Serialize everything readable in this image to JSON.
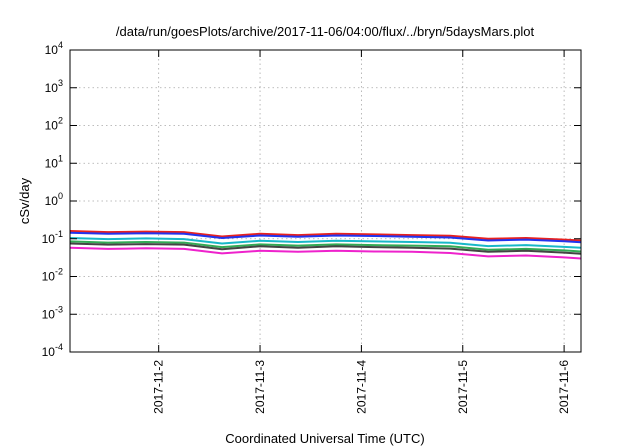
{
  "title": "/data/run/goesPlots/archive/2017-11-06/04:00/flux/../bryn/5daysMars.plot",
  "xlabel": "Coordinated Universal Time (UTC)",
  "ylabel": "cSv/day",
  "chart_data": {
    "type": "line",
    "title": "/data/run/goesPlots/archive/2017-11-06/04:00/flux/../bryn/5daysMars.plot",
    "xlabel": "Coordinated Universal Time (UTC)",
    "ylabel": "cSv/day",
    "yscale": "log",
    "ylim": [
      0.0001,
      10000
    ],
    "xlim": [
      "2017-11-01T03:00",
      "2017-11-06T04:00"
    ],
    "grid": true,
    "x_ticks": [
      "2017-11-2",
      "2017-11-3",
      "2017-11-4",
      "2017-11-5",
      "2017-11-6"
    ],
    "y_ticks": [
      {
        "value": 0.0001,
        "base": "10",
        "exp": "-4"
      },
      {
        "value": 0.001,
        "base": "10",
        "exp": "-3"
      },
      {
        "value": 0.01,
        "base": "10",
        "exp": "-2"
      },
      {
        "value": 0.1,
        "base": "10",
        "exp": "-1"
      },
      {
        "value": 1,
        "base": "10",
        "exp": "0"
      },
      {
        "value": 10,
        "base": "10",
        "exp": "1"
      },
      {
        "value": 100,
        "base": "10",
        "exp": "2"
      },
      {
        "value": 1000,
        "base": "10",
        "exp": "3"
      },
      {
        "value": 10000,
        "base": "10",
        "exp": "4"
      }
    ],
    "x": [
      "2017-11-01T03:00",
      "2017-11-01T12:00",
      "2017-11-01T21:00",
      "2017-11-02T06:00",
      "2017-11-02T15:00",
      "2017-11-03T00:00",
      "2017-11-03T09:00",
      "2017-11-03T18:00",
      "2017-11-04T03:00",
      "2017-11-04T12:00",
      "2017-11-04T21:00",
      "2017-11-05T06:00",
      "2017-11-05T15:00",
      "2017-11-06T00:00",
      "2017-11-06T04:00"
    ],
    "series": [
      {
        "color": "#e8211f",
        "values": [
          0.16,
          0.15,
          0.155,
          0.15,
          0.115,
          0.135,
          0.125,
          0.135,
          0.13,
          0.125,
          0.12,
          0.1,
          0.105,
          0.095,
          0.09
        ]
      },
      {
        "color": "#2233ee",
        "values": [
          0.145,
          0.135,
          0.14,
          0.135,
          0.105,
          0.122,
          0.113,
          0.122,
          0.118,
          0.113,
          0.108,
          0.09,
          0.095,
          0.086,
          0.081
        ]
      },
      {
        "color": "#18b8c8",
        "values": [
          0.105,
          0.098,
          0.102,
          0.098,
          0.075,
          0.088,
          0.082,
          0.088,
          0.085,
          0.082,
          0.078,
          0.064,
          0.068,
          0.061,
          0.058
        ]
      },
      {
        "color": "#33aa55",
        "values": [
          0.085,
          0.079,
          0.082,
          0.079,
          0.06,
          0.071,
          0.066,
          0.071,
          0.068,
          0.066,
          0.063,
          0.051,
          0.054,
          0.049,
          0.046
        ]
      },
      {
        "color": "#444444",
        "values": [
          0.075,
          0.07,
          0.072,
          0.07,
          0.053,
          0.063,
          0.058,
          0.063,
          0.06,
          0.058,
          0.055,
          0.045,
          0.048,
          0.043,
          0.04
        ]
      },
      {
        "color": "#ee22cc",
        "values": [
          0.058,
          0.054,
          0.056,
          0.054,
          0.041,
          0.048,
          0.045,
          0.048,
          0.046,
          0.045,
          0.042,
          0.034,
          0.036,
          0.032,
          0.03
        ]
      }
    ]
  }
}
